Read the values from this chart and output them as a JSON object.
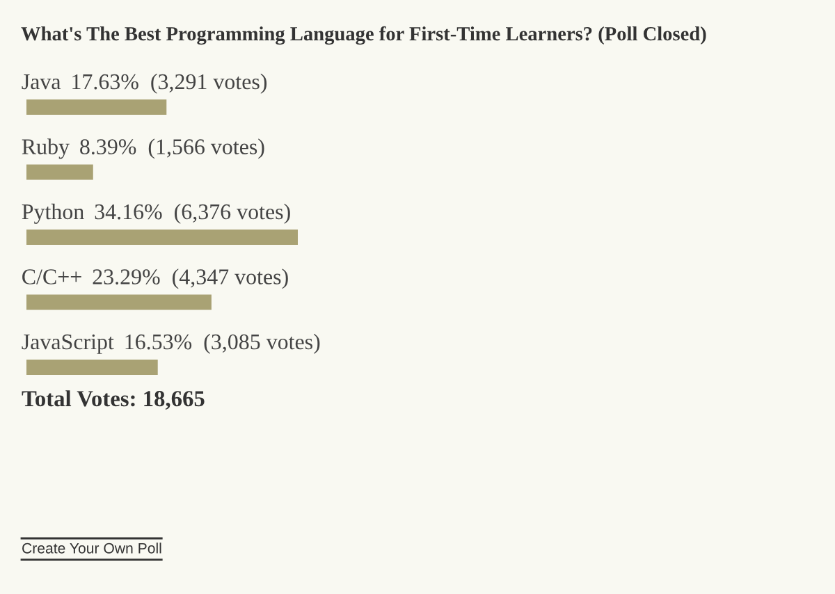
{
  "chart_data": {
    "type": "bar",
    "orientation": "horizontal",
    "title": "What's The Best Programming Language for First-Time Learners? (Poll Closed)",
    "categories": [
      "Java",
      "Ruby",
      "Python",
      "C/C++",
      "JavaScript"
    ],
    "values": [
      17.63,
      8.39,
      34.16,
      23.29,
      16.53
    ],
    "value_labels": [
      "17.63%  (3,291 votes)",
      "8.39%  (1,566 votes)",
      "34.16%  (6,376 votes)",
      "23.29%  (4,347 votes)",
      "16.53%  (3,085 votes)"
    ],
    "color": "#a9a274",
    "tick_labels": false,
    "annotations": [
      "Total Votes: 18,665",
      "Create Your Own Poll"
    ]
  }
}
